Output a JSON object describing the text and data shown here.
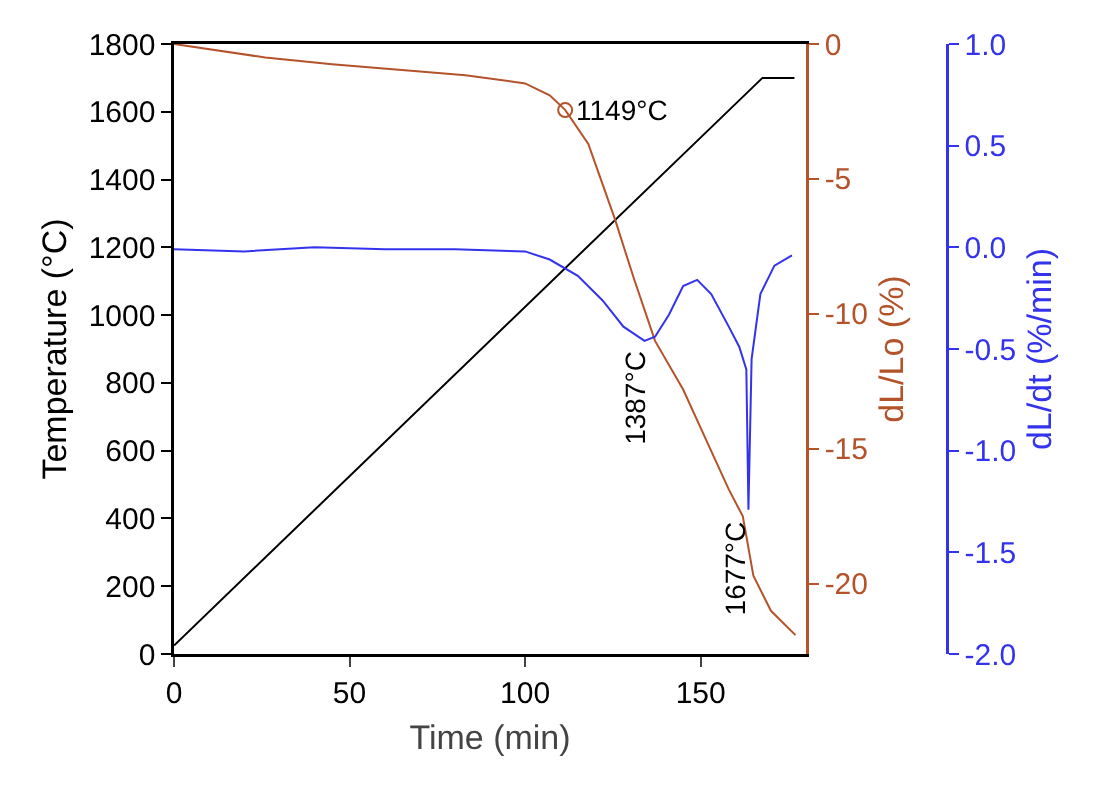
{
  "chart_data": {
    "type": "line",
    "xlabel": "Time (min)",
    "ylabel": "Temperature (°C)",
    "y2label": "dL/Lo (%)",
    "y3label": "dL/dt (%/min)",
    "xlim": [
      0,
      180
    ],
    "xticks": [
      0,
      50,
      100,
      150
    ],
    "ylim": [
      0,
      1800
    ],
    "yticks": [
      0,
      200,
      400,
      600,
      800,
      1000,
      1200,
      1400,
      1600,
      1800
    ],
    "y2lim": [
      -22.6,
      0
    ],
    "y2ticks": [
      -20,
      -15,
      -10,
      -5,
      0
    ],
    "y3lim": [
      -2,
      1
    ],
    "y3ticks": [
      {
        "value": -2,
        "label": "-2.0"
      },
      {
        "value": -1.5,
        "label": "-1.5"
      },
      {
        "value": -1,
        "label": "-1.0"
      },
      {
        "value": -0.5,
        "label": "-0.5"
      },
      {
        "value": 0,
        "label": "0.0"
      },
      {
        "value": 0.5,
        "label": "0.5"
      },
      {
        "value": 1,
        "label": "1.0"
      }
    ],
    "grid": false,
    "marker": "none",
    "line_style": "solid",
    "series": [
      {
        "color": "#000000",
        "x": [
          0,
          167.6,
          176.7
        ],
        "values": [
          25,
          1700,
          1700
        ]
      },
      {
        "color": "#b4532a",
        "axis": "y2",
        "x": [
          0,
          26,
          45,
          83,
          100,
          107,
          111.4,
          118,
          125.6,
          131,
          137,
          145,
          152,
          158,
          162,
          165,
          170,
          177
        ],
        "values": [
          0,
          -0.5,
          -0.75,
          -1.16,
          -1.46,
          -1.9,
          -2.44,
          -3.7,
          -6.5,
          -8.7,
          -11,
          -12.8,
          -14.8,
          -16.5,
          -17.5,
          -19.7,
          -21,
          -21.9
        ]
      },
      {
        "color": "#3333ee",
        "axis": "y3",
        "x": [
          0,
          20,
          40,
          60,
          80,
          100,
          107,
          115,
          122,
          128,
          134,
          137,
          141,
          145,
          149,
          153,
          158,
          161,
          163,
          163.6,
          164.5,
          167,
          171,
          176
        ],
        "values": [
          -0.01,
          -0.02,
          0,
          -0.01,
          -0.01,
          -0.02,
          -0.06,
          -0.14,
          -0.26,
          -0.39,
          -0.46,
          -0.44,
          -0.33,
          -0.19,
          -0.16,
          -0.23,
          -0.39,
          -0.49,
          -0.6,
          -1.29,
          -0.55,
          -0.23,
          -0.09,
          -0.04
        ]
      }
    ],
    "annotations": [
      {
        "text": "1149°C",
        "x": 111.4,
        "y": 1605
      },
      {
        "text": "1387°C",
        "x": 135,
        "y": 927
      },
      {
        "text": "1677°C",
        "x": 163.6,
        "y": 425
      }
    ]
  }
}
